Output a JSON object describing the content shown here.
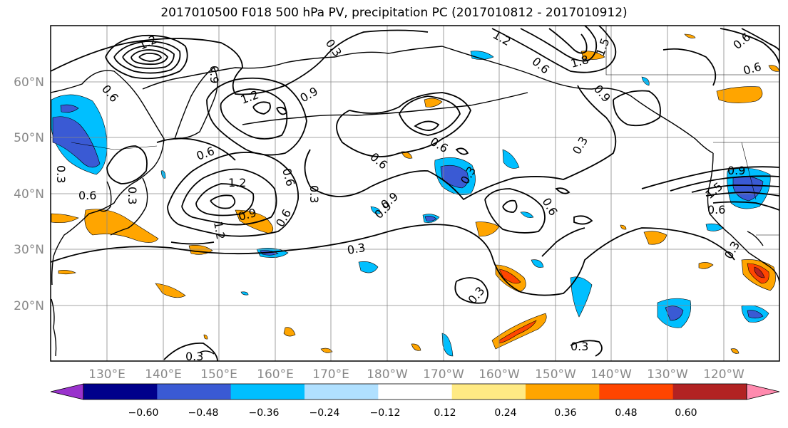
{
  "title": "2017010500 F018 500 hPa PV, precipitation PC (2017010812 - 2017010912)",
  "lat_labels": [
    "20°N",
    "30°N",
    "40°N",
    "50°N",
    "60°N"
  ],
  "lon_labels": [
    "130°E",
    "140°E",
    "150°E",
    "160°E",
    "170°E",
    "180°W",
    "170°W",
    "160°W",
    "150°W",
    "140°W",
    "130°W",
    "120°W"
  ],
  "contour_labels": [
    "1.2",
    "1.2",
    "1.2",
    "0.6",
    "0.6",
    "0.9",
    "1.2",
    "0.6",
    "0.9",
    "0.3",
    "0.3",
    "0.3",
    "0.6",
    "0.9",
    "0.6",
    "0.6",
    "0.9",
    "0.3",
    "0.6",
    "0.9",
    "0.3",
    "0.6",
    "0.3",
    "0.3",
    "1.2",
    "0.6",
    "1.8",
    "1.5",
    "0.9",
    "0.3",
    "0.9",
    "1.5",
    "0.6",
    "0.3",
    "0.6",
    "0.3",
    "0.3",
    "0.6"
  ],
  "colorbar": {
    "ticks": [
      "−0.60",
      "−0.48",
      "−0.36",
      "−0.24",
      "−0.12",
      "0.12",
      "0.24",
      "0.36",
      "0.48",
      "0.60"
    ],
    "colors": [
      "#9932cc",
      "#00008b",
      "#3a5ad4",
      "#00bfff",
      "#b0e0ff",
      "#ffffff",
      "#ffea84",
      "#ffa500",
      "#ff4500",
      "#b22222",
      "#ff8aae"
    ]
  }
}
